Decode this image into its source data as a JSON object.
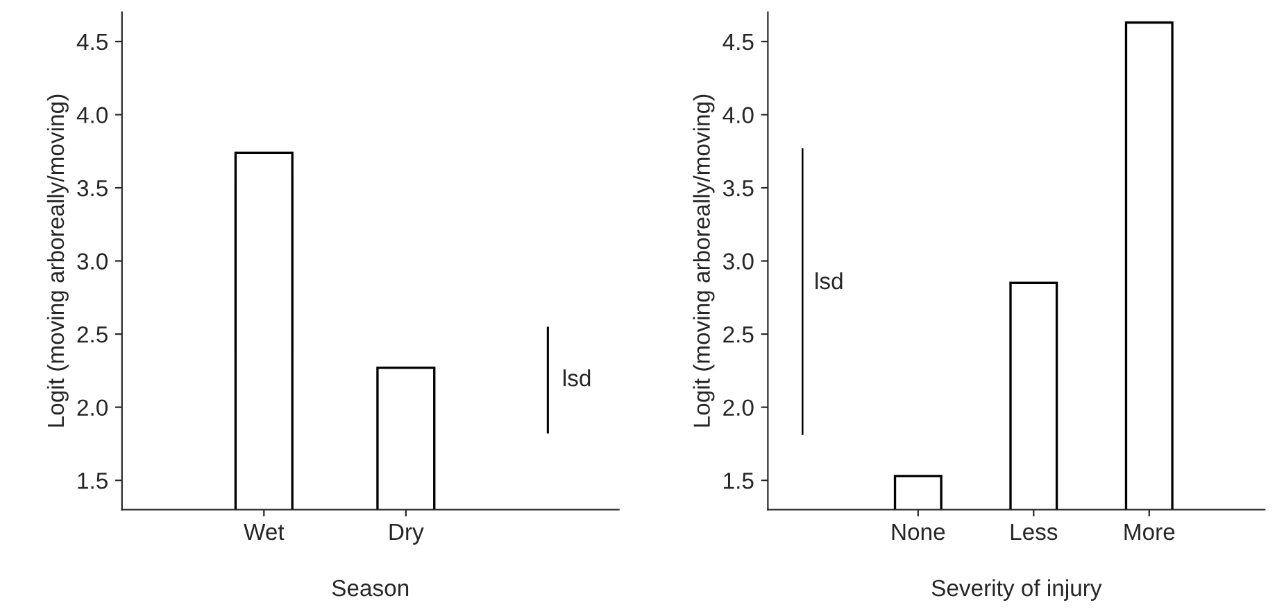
{
  "chart_data": [
    {
      "type": "bar",
      "xlabel": "Season",
      "ylabel": "Logit (moving arboreally/moving)",
      "categories": [
        "Wet",
        "Dry",
        null
      ],
      "ylim": [
        1.3,
        4.7
      ],
      "yticks": [
        1.5,
        {
          "value": 2,
          "label": "2.0"
        },
        2.5,
        {
          "value": 3,
          "label": "3.0"
        },
        3.5,
        {
          "value": 4,
          "label": "4.0"
        },
        4.5
      ],
      "grid": false,
      "legend": false,
      "series": [
        {
          "color": "#ffffff",
          "values": [
            3.74,
            2.27,
            null
          ]
        },
        {
          "color": "#000000",
          "values": [
            null,
            null,
            0.73
          ],
          "base": [
            null,
            null,
            1.82
          ]
        }
      ],
      "annotations": [
        "lsd"
      ]
    },
    {
      "type": "bar",
      "xlabel": "Severity of injury",
      "ylabel": "Logit (moving arboreally/moving)",
      "categories": [
        null,
        "None",
        "Less",
        "More"
      ],
      "ylim": [
        1.3,
        4.7
      ],
      "yticks": [
        1.5,
        {
          "value": 2,
          "label": "2.0"
        },
        2.5,
        {
          "value": 3,
          "label": "3.0"
        },
        3.5,
        {
          "value": 4,
          "label": "4.0"
        },
        4.5
      ],
      "grid": false,
      "legend": false,
      "series": [
        {
          "color": "#ffffff",
          "values": [
            null,
            1.53,
            2.85,
            4.63
          ]
        },
        {
          "color": "#000000",
          "values": [
            1.96,
            null,
            null,
            null
          ],
          "base": [
            1.81,
            null,
            null,
            null
          ]
        }
      ],
      "annotations": [
        "lsd"
      ]
    }
  ]
}
